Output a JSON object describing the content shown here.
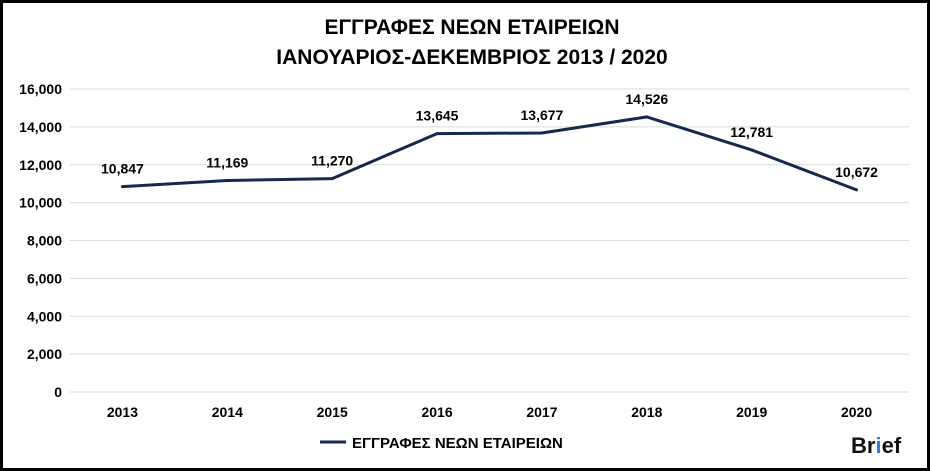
{
  "chart_data": {
    "type": "line",
    "title_lines": [
      "ΕΓΓΡΑΦΕΣ ΝΕΩΝ ΕΤΑΙΡΕΙΩΝ",
      "ΙΑΝΟΥΑΡΙΟΣ-ΔΕΚΕΜΒΡΙΟΣ 2013 / 2020"
    ],
    "categories": [
      "2013",
      "2014",
      "2015",
      "2016",
      "2017",
      "2018",
      "2019",
      "2020"
    ],
    "series": [
      {
        "name": "ΕΓΓΡΑΦΕΣ ΝΕΩΝ ΕΤΑΙΡΕΙΩΝ",
        "values": [
          10847,
          11169,
          11270,
          13645,
          13677,
          14526,
          12781,
          10672
        ],
        "labels": [
          "10,847",
          "11,169",
          "11,270",
          "13,645",
          "13,677",
          "14,526",
          "12,781",
          "10,672"
        ],
        "color": "#15294b"
      }
    ],
    "ylim": [
      0,
      16000
    ],
    "yticks": [
      "0",
      "2,000",
      "4,000",
      "6,000",
      "8,000",
      "10,000",
      "12,000",
      "14,000",
      "16,000"
    ],
    "grid": true,
    "legend_position": "bottom"
  },
  "brand": {
    "parts": [
      "Br",
      "i",
      "ef"
    ],
    "accent": "#2e7bd6"
  }
}
